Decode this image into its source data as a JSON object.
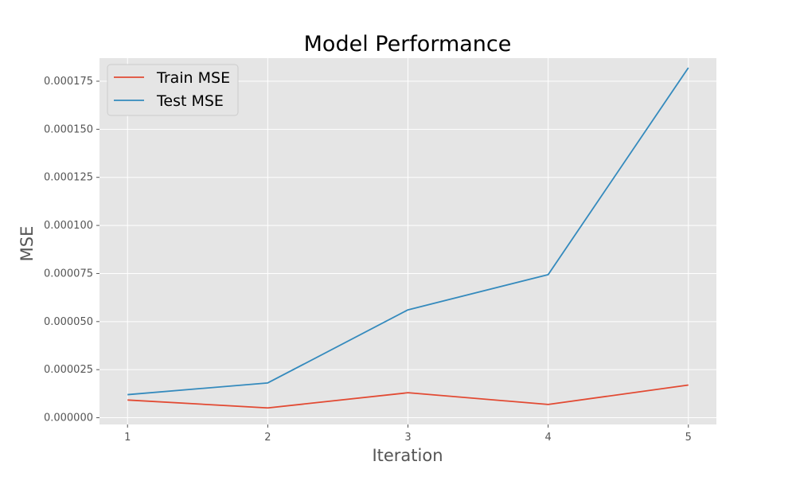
{
  "chart_data": {
    "type": "line",
    "title": "Model Performance",
    "xlabel": "Iteration",
    "ylabel": "MSE",
    "x": [
      1,
      2,
      3,
      4,
      5
    ],
    "xticks": [
      "1",
      "2",
      "3",
      "4",
      "5"
    ],
    "xlim": [
      0.8,
      5.2
    ],
    "ylim": [
      -3.5e-06,
      0.000187
    ],
    "yticks": [
      0.0,
      2.5e-05,
      5e-05,
      7.5e-05,
      0.0001,
      0.000125,
      0.00015,
      0.000175
    ],
    "ytick_labels": [
      "0.000000",
      "0.000025",
      "0.000050",
      "0.000075",
      "0.000100",
      "0.000125",
      "0.000150",
      "0.000175"
    ],
    "grid": true,
    "legend_position": "top-left",
    "background_color": "#e5e5e5",
    "series": [
      {
        "name": "Train MSE",
        "color": "#e24a33",
        "values": [
          9.2e-06,
          5.1e-06,
          1.3e-05,
          6.9e-06,
          1.7e-05
        ]
      },
      {
        "name": "Test MSE",
        "color": "#348abd",
        "values": [
          1.2e-05,
          1.81e-05,
          5.61e-05,
          7.44e-05,
          0.000182
        ]
      }
    ]
  }
}
